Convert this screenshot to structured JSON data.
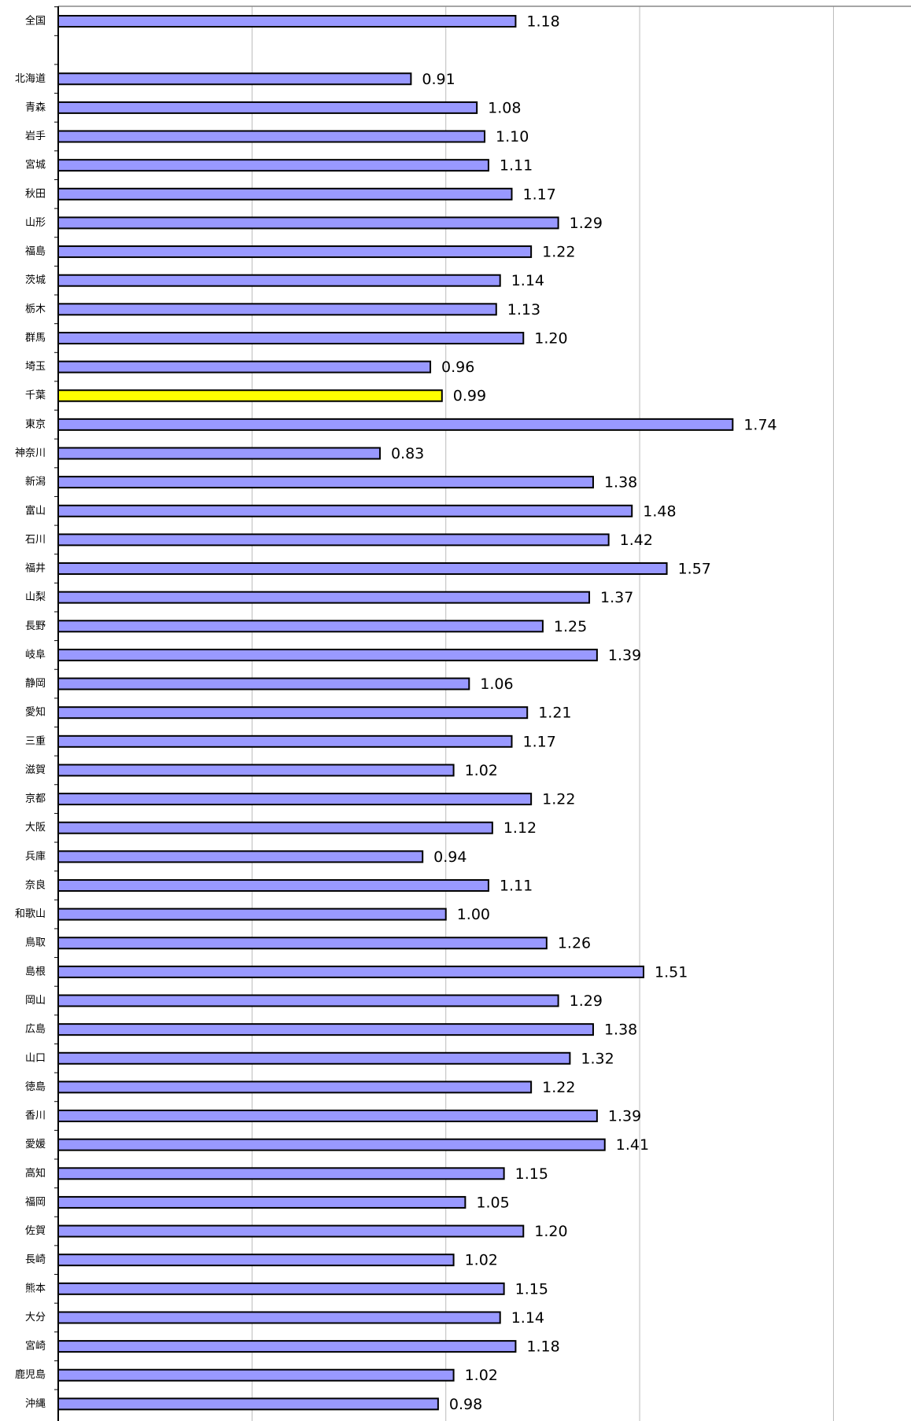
{
  "chart_data": {
    "type": "hbar",
    "categories": [
      "全国",
      null,
      "北海道",
      "青森",
      "岩手",
      "宮城",
      "秋田",
      "山形",
      "福島",
      "茨城",
      "栃木",
      "群馬",
      "埼玉",
      "千葉",
      "東京",
      "神奈川",
      "新潟",
      "富山",
      "石川",
      "福井",
      "山梨",
      "長野",
      "岐阜",
      "静岡",
      "愛知",
      "三重",
      "滋賀",
      "京都",
      "大阪",
      "兵庫",
      "奈良",
      "和歌山",
      "鳥取",
      "島根",
      "岡山",
      "広島",
      "山口",
      "徳島",
      "香川",
      "愛媛",
      "高知",
      "福岡",
      "佐賀",
      "長崎",
      "熊本",
      "大分",
      "宮崎",
      "鹿児島",
      "沖縄"
    ],
    "values": [
      1.18,
      null,
      0.91,
      1.08,
      1.1,
      1.11,
      1.17,
      1.29,
      1.22,
      1.14,
      1.13,
      1.2,
      0.96,
      0.99,
      1.74,
      0.83,
      1.38,
      1.48,
      1.42,
      1.57,
      1.37,
      1.25,
      1.39,
      1.06,
      1.21,
      1.17,
      1.02,
      1.22,
      1.12,
      0.94,
      1.11,
      1.0,
      1.26,
      1.51,
      1.29,
      1.38,
      1.32,
      1.22,
      1.39,
      1.41,
      1.15,
      1.05,
      1.2,
      1.02,
      1.15,
      1.14,
      1.18,
      1.02,
      0.98
    ],
    "value_labels": [
      "1.18",
      null,
      "0.91",
      "1.08",
      "1.10",
      "1.11",
      "1.17",
      "1.29",
      "1.22",
      "1.14",
      "1.13",
      "1.20",
      "0.96",
      "0.99",
      "1.74",
      "0.83",
      "1.38",
      "1.48",
      "1.42",
      "1.57",
      "1.37",
      "1.25",
      "1.39",
      "1.06",
      "1.21",
      "1.17",
      "1.02",
      "1.22",
      "1.12",
      "0.94",
      "1.11",
      "1.00",
      "1.26",
      "1.51",
      "1.29",
      "1.38",
      "1.32",
      "1.22",
      "1.39",
      "1.41",
      "1.15",
      "1.05",
      "1.20",
      "1.02",
      "1.15",
      "1.14",
      "1.18",
      "1.02",
      "0.98"
    ],
    "colors": [
      "#9999ff",
      null,
      "#9999ff",
      "#9999ff",
      "#9999ff",
      "#9999ff",
      "#9999ff",
      "#9999ff",
      "#9999ff",
      "#9999ff",
      "#9999ff",
      "#9999ff",
      "#9999ff",
      "#ffff00",
      "#9999ff",
      "#9999ff",
      "#9999ff",
      "#9999ff",
      "#9999ff",
      "#9999ff",
      "#9999ff",
      "#9999ff",
      "#9999ff",
      "#9999ff",
      "#9999ff",
      "#9999ff",
      "#9999ff",
      "#9999ff",
      "#9999ff",
      "#9999ff",
      "#9999ff",
      "#9999ff",
      "#9999ff",
      "#9999ff",
      "#9999ff",
      "#9999ff",
      "#9999ff",
      "#9999ff",
      "#9999ff",
      "#9999ff",
      "#9999ff",
      "#9999ff",
      "#9999ff",
      "#9999ff",
      "#9999ff",
      "#9999ff",
      "#9999ff",
      "#9999ff",
      "#9999ff"
    ],
    "xlim": [
      0,
      2.2
    ],
    "xticks": [
      0.5,
      1,
      1.5,
      2
    ],
    "grid": true
  }
}
